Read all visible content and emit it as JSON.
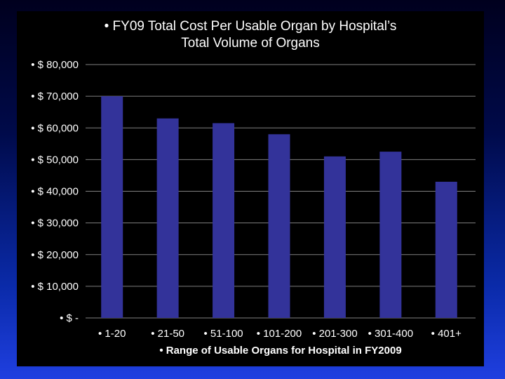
{
  "chart_data": {
    "type": "bar",
    "title": [
      "• FY09 Total Cost Per Usable Organ by Hospital’s",
      "Total Volume of Organs"
    ],
    "xlabel": "• Range of Usable Organs for Hospital in FY2009",
    "ylabel": "",
    "categories": [
      "• 1-20",
      "• 21-50",
      "• 51-100",
      "• 101-200",
      "• 201-300",
      "• 301-400",
      "• 401+"
    ],
    "values": [
      70000,
      63000,
      61500,
      58000,
      51000,
      52500,
      43000
    ],
    "ylim": [
      0,
      80000
    ],
    "y_tick_values": [
      0,
      10000,
      20000,
      30000,
      40000,
      50000,
      60000,
      70000,
      80000
    ],
    "y_tick_labels": [
      "• $ -",
      "• $ 10,000",
      "• $ 20,000",
      "• $ 30,000",
      "• $ 40,000",
      "• $ 50,000",
      "• $ 60,000",
      "• $ 70,000",
      "• $ 80,000"
    ],
    "grid": true,
    "legend": "none",
    "colors": {
      "bar": "#33339a",
      "plot_background": "#000000",
      "gridline": "#808080",
      "text": "#ffffff"
    }
  }
}
